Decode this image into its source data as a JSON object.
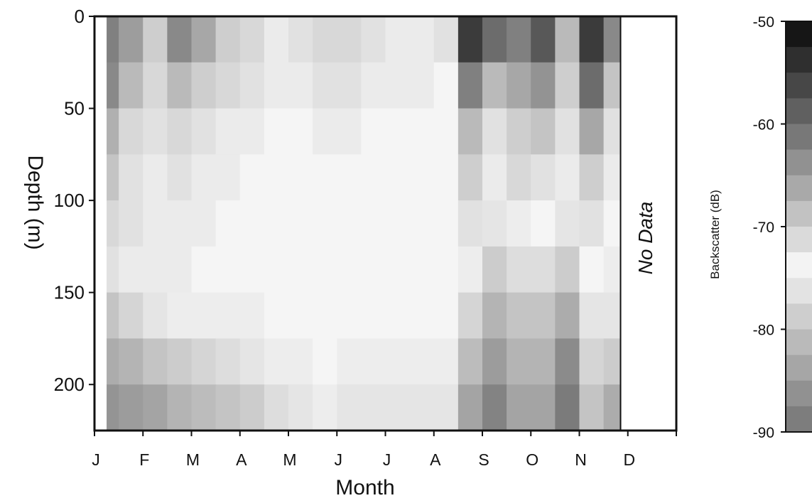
{
  "chart_data": {
    "type": "heatmap",
    "xlabel": "Month",
    "ylabel": "Depth (m)",
    "x_ticks": [
      "J",
      "F",
      "M",
      "A",
      "M",
      "J",
      "J",
      "A",
      "S",
      "O",
      "N",
      "D"
    ],
    "y_ticks": [
      0,
      50,
      100,
      150,
      200
    ],
    "ylim": [
      225,
      0
    ],
    "y_inverted": true,
    "data_start_month": 0.25,
    "data_end_month": 10.85,
    "annotation": "No Data",
    "colorbar": {
      "label": "Backscatter (dB)",
      "ticks": [
        -50,
        -60,
        -70,
        -80,
        -90
      ],
      "range": [
        -90,
        -50
      ],
      "colormap": "grayscale (dark = high backscatter, light ≈ -70)"
    },
    "depth_bins_m": [
      0,
      25,
      50,
      75,
      100,
      125,
      150,
      175,
      200,
      225
    ],
    "time_columns_month": [
      0.25,
      0.75,
      1.25,
      1.75,
      2.25,
      2.75,
      3.25,
      3.75,
      4.25,
      4.75,
      5.25,
      5.75,
      6.25,
      6.75,
      7.25,
      7.75,
      8.25,
      8.75,
      9.25,
      9.75,
      10.25,
      10.75
    ],
    "backscatter_db": [
      [
        -62,
        -65,
        -70,
        -63,
        -66,
        -70,
        -71,
        -73,
        -72,
        -71,
        -71,
        -72,
        -73,
        -73,
        -72,
        -55,
        -60,
        -62,
        -58,
        -68,
        -55,
        -63
      ],
      [
        -63,
        -68,
        -71,
        -68,
        -70,
        -71,
        -72,
        -73,
        -73,
        -72,
        -72,
        -73,
        -73,
        -73,
        -74,
        -62,
        -68,
        -66,
        -64,
        -70,
        -60,
        -69
      ],
      [
        -67,
        -71,
        -72,
        -71,
        -72,
        -73,
        -73,
        -74,
        -74,
        -73,
        -73,
        -74,
        -74,
        -74,
        -74,
        -68,
        -72,
        -70,
        -69,
        -72,
        -66,
        -72
      ],
      [
        -69,
        -72,
        -73,
        -72,
        -73,
        -73,
        -74,
        -74,
        -74,
        -74,
        -74,
        -74,
        -74,
        -74,
        -74,
        -70,
        -73,
        -71,
        -72,
        -73,
        -70,
        -73
      ],
      [
        -71,
        -72,
        -73,
        -73,
        -73,
        -74,
        -74,
        -74,
        -74,
        -74,
        -74,
        -74,
        -74,
        -74,
        -74,
        -72,
        -76,
        -75,
        -74,
        -76,
        -72,
        -74
      ],
      [
        -72,
        -73,
        -73,
        -73,
        -74,
        -74,
        -74,
        -74,
        -74,
        -74,
        -74,
        -74,
        -74,
        -74,
        -74,
        -75,
        -79,
        -77,
        -77,
        -79,
        -74,
        -75
      ],
      [
        -80,
        -78,
        -76,
        -75,
        -75,
        -75,
        -75,
        -74,
        -74,
        -74,
        -74,
        -74,
        -74,
        -74,
        -74,
        -78,
        -82,
        -80,
        -80,
        -83,
        -76,
        -76
      ],
      [
        -83,
        -82,
        -80,
        -79,
        -78,
        -77,
        -76,
        -75,
        -75,
        -74,
        -75,
        -75,
        -75,
        -75,
        -75,
        -81,
        -85,
        -82,
        -82,
        -87,
        -78,
        -79
      ],
      [
        -86,
        -85,
        -84,
        -82,
        -81,
        -80,
        -79,
        -77,
        -76,
        -75,
        -76,
        -76,
        -76,
        -76,
        -76,
        -84,
        -88,
        -84,
        -84,
        -89,
        -80,
        -83
      ]
    ]
  }
}
